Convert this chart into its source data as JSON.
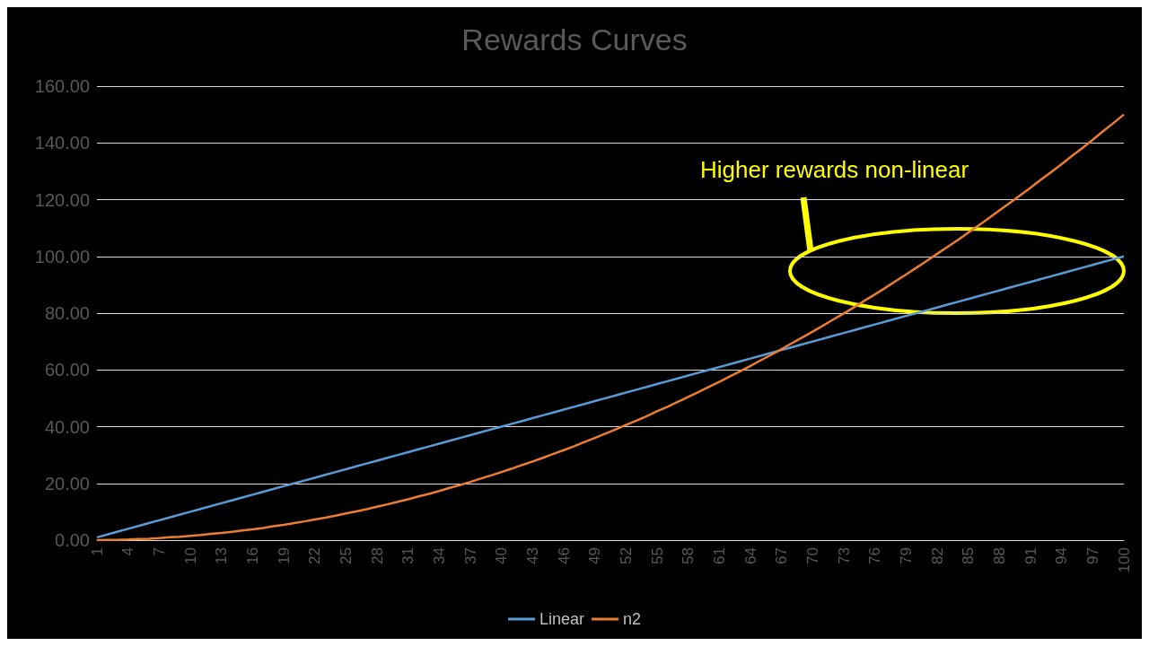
{
  "chart_data": {
    "type": "line",
    "title": "Rewards Curves",
    "categories": [
      "1",
      null,
      null,
      "4",
      null,
      null,
      "7",
      null,
      null,
      "10",
      null,
      null,
      "13",
      null,
      null,
      "16",
      null,
      null,
      "19",
      null,
      null,
      "22",
      null,
      null,
      "25",
      null,
      null,
      "28",
      null,
      null,
      "31",
      null,
      null,
      "34",
      null,
      null,
      "37",
      null,
      null,
      "40",
      null,
      null,
      "43",
      null,
      null,
      "46",
      null,
      null,
      "49",
      null,
      null,
      "52",
      null,
      null,
      "55",
      null,
      null,
      "58",
      null,
      null,
      "61",
      null,
      null,
      "64",
      null,
      null,
      "67",
      null,
      null,
      "70",
      null,
      null,
      "73",
      null,
      null,
      "76",
      null,
      null,
      "79",
      null,
      null,
      "82",
      null,
      null,
      "85",
      null,
      null,
      "88",
      null,
      null,
      "91",
      null,
      null,
      "94",
      null,
      null,
      "97",
      null,
      null,
      "100"
    ],
    "series": [
      {
        "name": "Linear",
        "color": "#5b9bd5",
        "values": [
          1,
          2,
          3,
          4,
          5,
          6,
          7,
          8,
          9,
          10,
          11,
          12,
          13,
          14,
          15,
          16,
          17,
          18,
          19,
          20,
          21,
          22,
          23,
          24,
          25,
          26,
          27,
          28,
          29,
          30,
          31,
          32,
          33,
          34,
          35,
          36,
          37,
          38,
          39,
          40,
          41,
          42,
          43,
          44,
          45,
          46,
          47,
          48,
          49,
          50,
          51,
          52,
          53,
          54,
          55,
          56,
          57,
          58,
          59,
          60,
          61,
          62,
          63,
          64,
          65,
          66,
          67,
          68,
          69,
          70,
          71,
          72,
          73,
          74,
          75,
          76,
          77,
          78,
          79,
          80,
          81,
          82,
          83,
          84,
          85,
          86,
          87,
          88,
          89,
          90,
          91,
          92,
          93,
          94,
          95,
          96,
          97,
          98,
          99,
          100
        ]
      },
      {
        "name": "n2",
        "color": "#ed7d31",
        "values": [
          0.0,
          0.1,
          0.1,
          0.2,
          0.4,
          0.5,
          0.7,
          1.0,
          1.2,
          1.5,
          1.8,
          2.2,
          2.5,
          2.9,
          3.4,
          3.8,
          4.3,
          4.9,
          5.4,
          6.0,
          6.6,
          7.3,
          7.9,
          8.6,
          9.4,
          10.1,
          10.9,
          11.8,
          12.6,
          13.5,
          14.4,
          15.4,
          16.3,
          17.3,
          18.4,
          19.4,
          20.5,
          21.7,
          22.8,
          24.0,
          25.2,
          26.5,
          27.7,
          29.0,
          30.4,
          31.7,
          33.1,
          34.6,
          36.0,
          37.5,
          39.0,
          40.6,
          42.1,
          43.7,
          45.4,
          47.0,
          48.7,
          50.5,
          52.2,
          54.0,
          55.8,
          57.7,
          59.5,
          61.4,
          63.4,
          65.3,
          67.3,
          69.4,
          71.4,
          73.5,
          75.6,
          77.8,
          79.9,
          82.1,
          84.4,
          86.6,
          88.9,
          91.3,
          93.6,
          96.0,
          98.4,
          100.9,
          103.3,
          105.8,
          108.4,
          110.9,
          113.5,
          116.2,
          118.8,
          121.5,
          124.2,
          127.0,
          129.7,
          132.5,
          135.4,
          138.2,
          141.1,
          144.1,
          147.0,
          150.0
        ]
      }
    ],
    "ylim": [
      0,
      160
    ],
    "yticks": [
      {
        "value": 0,
        "label": "0.00"
      },
      {
        "value": 20,
        "label": "20.00"
      },
      {
        "value": 40,
        "label": "40.00"
      },
      {
        "value": 60,
        "label": "60.00"
      },
      {
        "value": 80,
        "label": "80.00"
      },
      {
        "value": 100,
        "label": "100.00"
      },
      {
        "value": 120,
        "label": "120.00"
      },
      {
        "value": 140,
        "label": "140.00"
      },
      {
        "value": 160,
        "label": "160.00"
      }
    ],
    "grid": "y",
    "legend": "bottom",
    "marker": "none",
    "line_style": "solid",
    "annotations": [
      "Higher rewards non-linear"
    ]
  }
}
